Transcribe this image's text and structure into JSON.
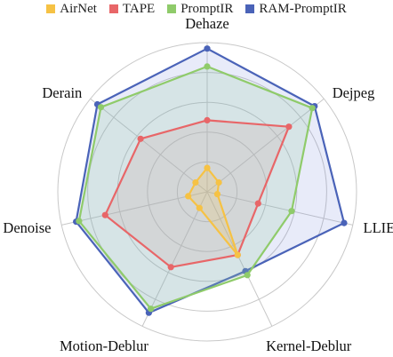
{
  "legend": [
    {
      "name": "AirNet",
      "color": "#F6C244"
    },
    {
      "name": "TAPE",
      "color": "#E86668"
    },
    {
      "name": "PromptIR",
      "color": "#8FCB6A"
    },
    {
      "name": "RAM-PromptIR",
      "color": "#4A63B8"
    }
  ],
  "chart_data": {
    "type": "radar",
    "axes": [
      "Dehaze",
      "Dejpeg",
      "LLIE",
      "Kernel-Deblur",
      "Motion-Deblur",
      "Denoise",
      "Derain"
    ],
    "rmax": 1.0,
    "rings": [
      0.2,
      0.4,
      0.6,
      0.8,
      1.0
    ],
    "grid": true,
    "legend_position": "top",
    "series": [
      {
        "name": "RAM-PromptIR",
        "color": "#4A63B8",
        "fill": "rgba(110,130,215,0.16)",
        "values": [
          0.96,
          0.92,
          0.94,
          0.59,
          0.9,
          0.9,
          0.94
        ]
      },
      {
        "name": "PromptIR",
        "color": "#8FCB6A",
        "fill": "rgba(150,205,165,0.22)",
        "values": [
          0.84,
          0.9,
          0.58,
          0.62,
          0.87,
          0.88,
          0.91
        ]
      },
      {
        "name": "TAPE",
        "color": "#E86668",
        "fill": "rgba(205,170,170,0.25)",
        "values": [
          0.48,
          0.7,
          0.35,
          0.47,
          0.56,
          0.7,
          0.57
        ]
      },
      {
        "name": "AirNet",
        "color": "#F6C244",
        "fill": "rgba(246,194,68,0.18)",
        "values": [
          0.16,
          0.1,
          0.07,
          0.47,
          0.12,
          0.13,
          0.1
        ]
      }
    ]
  }
}
